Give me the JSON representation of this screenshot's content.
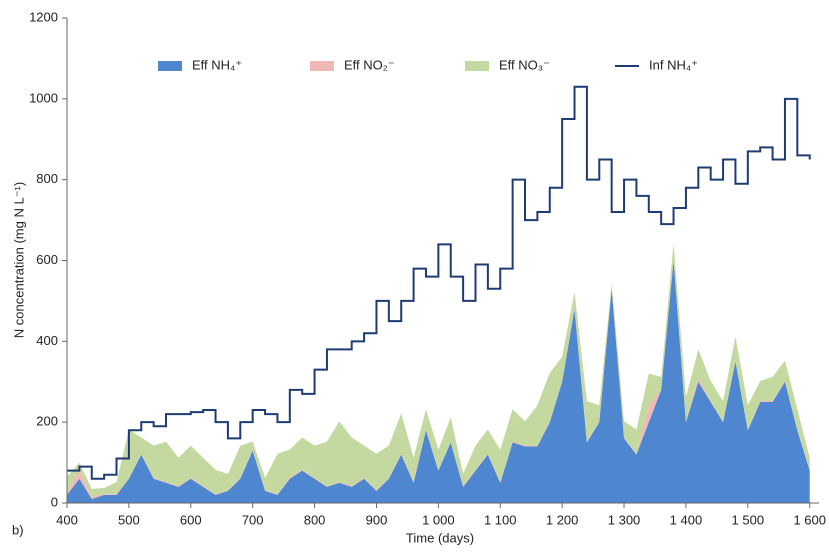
{
  "chart_data": {
    "type": "stacked-area-line",
    "y_label": "N concentration  (mg N L⁻¹)",
    "x_label": "Time (days)",
    "panel_label": "b)",
    "x": [
      400,
      420,
      440,
      460,
      480,
      500,
      520,
      540,
      560,
      580,
      600,
      620,
      640,
      660,
      680,
      700,
      720,
      740,
      760,
      780,
      800,
      820,
      840,
      860,
      880,
      900,
      920,
      940,
      960,
      980,
      1000,
      1020,
      1040,
      1060,
      1080,
      1100,
      1120,
      1140,
      1160,
      1180,
      1200,
      1220,
      1240,
      1260,
      1280,
      1300,
      1320,
      1340,
      1360,
      1380,
      1400,
      1420,
      1440,
      1460,
      1480,
      1500,
      1520,
      1540,
      1560,
      1580,
      1600
    ],
    "series": [
      {
        "name": "Eff NH₄⁺",
        "color": "#4f86d0",
        "kind": "area",
        "values": [
          20,
          60,
          10,
          20,
          20,
          60,
          120,
          60,
          50,
          40,
          60,
          40,
          20,
          30,
          60,
          130,
          30,
          20,
          60,
          80,
          60,
          40,
          50,
          40,
          60,
          30,
          60,
          120,
          50,
          180,
          80,
          150,
          40,
          80,
          120,
          50,
          150,
          140,
          140,
          200,
          300,
          480,
          150,
          200,
          530,
          160,
          120,
          200,
          280,
          600,
          200,
          300,
          250,
          200,
          350,
          180,
          250,
          250,
          300,
          180,
          80
        ]
      },
      {
        "name": "Eff NO₂⁻",
        "color": "#f2b7b7",
        "kind": "area",
        "values": [
          5,
          20,
          5,
          2,
          2,
          2,
          2,
          2,
          2,
          2,
          2,
          2,
          2,
          2,
          2,
          2,
          2,
          2,
          2,
          2,
          2,
          2,
          2,
          2,
          2,
          2,
          2,
          2,
          2,
          2,
          2,
          2,
          2,
          2,
          2,
          2,
          2,
          2,
          2,
          2,
          2,
          2,
          2,
          2,
          2,
          2,
          2,
          40,
          2,
          2,
          2,
          10,
          2,
          2,
          2,
          2,
          2,
          2,
          2,
          2,
          2
        ]
      },
      {
        "name": "Eff NO₃⁻",
        "color": "#c4d9a0",
        "kind": "area",
        "values": [
          40,
          20,
          20,
          15,
          30,
          120,
          40,
          80,
          100,
          70,
          80,
          70,
          60,
          40,
          80,
          20,
          30,
          100,
          70,
          80,
          80,
          110,
          150,
          120,
          80,
          90,
          80,
          100,
          60,
          50,
          50,
          60,
          30,
          60,
          60,
          80,
          80,
          60,
          100,
          120,
          60,
          40,
          100,
          40,
          10,
          40,
          60,
          80,
          30,
          40,
          60,
          70,
          50,
          50,
          60,
          60,
          50,
          60,
          50,
          50,
          30
        ]
      },
      {
        "name": "Inf NH₄⁺",
        "color": "#1f3b73",
        "kind": "line",
        "values": [
          80,
          90,
          60,
          70,
          110,
          180,
          200,
          190,
          220,
          220,
          225,
          230,
          200,
          160,
          200,
          230,
          220,
          200,
          280,
          270,
          330,
          380,
          380,
          400,
          420,
          500,
          450,
          500,
          580,
          560,
          640,
          560,
          500,
          590,
          530,
          580,
          800,
          700,
          720,
          780,
          950,
          1030,
          800,
          850,
          720,
          800,
          760,
          720,
          690,
          730,
          780,
          830,
          800,
          850,
          790,
          870,
          880,
          850,
          1000,
          860,
          850
        ]
      }
    ],
    "xlim": [
      400,
      1615
    ],
    "ylim": [
      0,
      1200
    ],
    "xticks": [
      400,
      500,
      600,
      700,
      800,
      900,
      {
        "value": 1000,
        "label": "1 000"
      },
      {
        "value": 1100,
        "label": "1 100"
      },
      {
        "value": 1200,
        "label": "1 200"
      },
      {
        "value": 1300,
        "label": "1 300"
      },
      {
        "value": 1400,
        "label": "1 400"
      },
      {
        "value": 1500,
        "label": "1 500"
      },
      {
        "value": 1600,
        "label": "1 600"
      }
    ],
    "yticks": [
      0,
      200,
      400,
      600,
      800,
      1000,
      1200
    ]
  }
}
